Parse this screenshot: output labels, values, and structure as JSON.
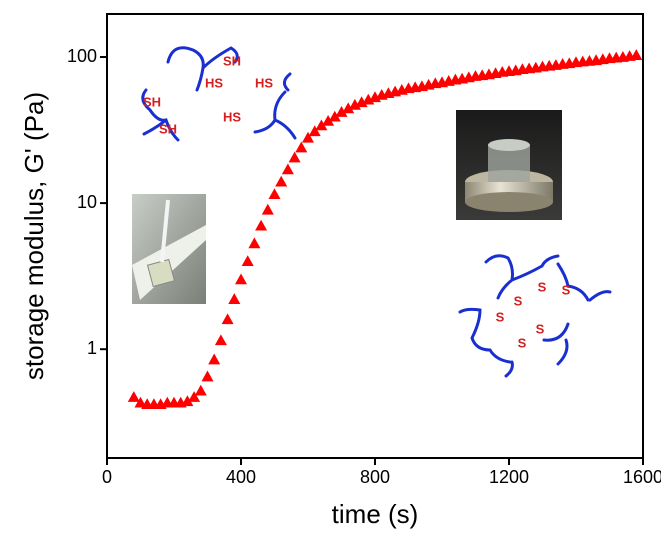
{
  "chart_data": {
    "type": "scatter",
    "marker": "triangle",
    "color": "#ff0000",
    "xlabel": "time (s)",
    "ylabel": "storage modulus, G' (Pa)",
    "xlim": [
      0,
      1600
    ],
    "xticks": [
      0,
      400,
      800,
      1200,
      1600
    ],
    "ylim": [
      0.18,
      197
    ],
    "yticks": [
      1,
      10,
      100
    ],
    "yscale": "log",
    "x": [
      80,
      100,
      120,
      140,
      160,
      180,
      200,
      220,
      240,
      260,
      280,
      300,
      320,
      340,
      360,
      380,
      400,
      420,
      440,
      460,
      480,
      500,
      520,
      540,
      560,
      580,
      600,
      620,
      640,
      660,
      680,
      700,
      720,
      740,
      760,
      780,
      800,
      820,
      840,
      860,
      880,
      900,
      920,
      940,
      960,
      980,
      1000,
      1020,
      1040,
      1060,
      1080,
      1100,
      1120,
      1140,
      1160,
      1180,
      1200,
      1220,
      1240,
      1260,
      1280,
      1300,
      1320,
      1340,
      1360,
      1380,
      1400,
      1420,
      1440,
      1460,
      1480,
      1500,
      1520,
      1540,
      1560,
      1580
    ],
    "values": [
      0.47,
      0.43,
      0.42,
      0.42,
      0.42,
      0.43,
      0.43,
      0.43,
      0.44,
      0.47,
      0.52,
      0.65,
      0.85,
      1.15,
      1.6,
      2.2,
      3,
      4,
      5.3,
      7,
      9,
      11.5,
      14,
      17,
      20.5,
      24,
      28,
      31,
      34,
      36.5,
      39,
      42,
      44.5,
      47,
      49,
      51,
      53,
      55,
      56.5,
      58,
      59.5,
      61,
      62,
      63,
      64.5,
      66,
      67,
      68.5,
      70,
      71,
      72.5,
      74,
      75,
      76,
      77.5,
      79,
      80,
      81,
      82.5,
      83.5,
      84.5,
      86,
      87,
      88,
      89.5,
      90.5,
      92,
      93,
      94,
      95,
      96.5,
      98,
      99,
      100,
      101.5,
      103
    ],
    "annotations": [
      "SH",
      "HS",
      "HS",
      "SH",
      "SH",
      "HS",
      "S",
      "S",
      "S",
      "S",
      "S",
      "S"
    ]
  }
}
